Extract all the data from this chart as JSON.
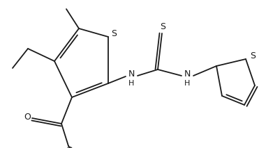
{
  "bg_color": "#ffffff",
  "line_color": "#1a1a1a",
  "line_width": 1.3,
  "figsize": [
    3.71,
    2.13
  ],
  "dpi": 100,
  "xlim": [
    0,
    371
  ],
  "ylim": [
    0,
    213
  ]
}
